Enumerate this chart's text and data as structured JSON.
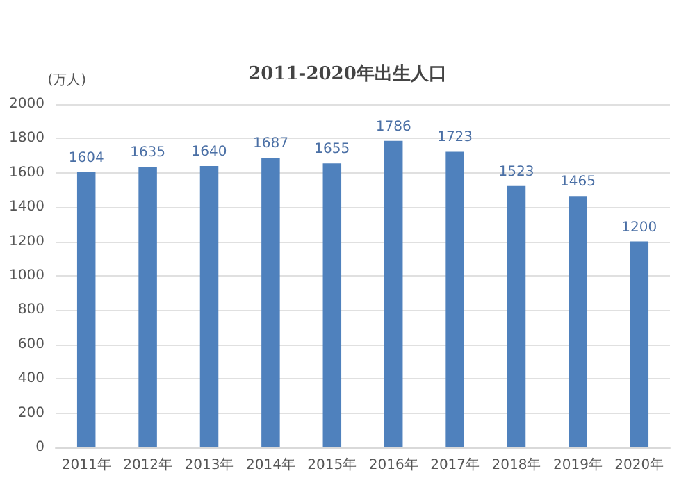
{
  "chart_data": {
    "type": "bar",
    "title": "2011-2020年出生人口",
    "ylabel": "(万人)",
    "categories": [
      "2011年",
      "2012年",
      "2013年",
      "2014年",
      "2015年",
      "2016年",
      "2017年",
      "2018年",
      "2019年",
      "2020年"
    ],
    "values": [
      1604,
      1635,
      1640,
      1687,
      1655,
      1786,
      1723,
      1523,
      1465,
      1200
    ],
    "color": "#4f81bd",
    "ylim": [
      0,
      2000
    ],
    "yticks": [
      0,
      200,
      400,
      600,
      800,
      1000,
      1200,
      1400,
      1600,
      1800,
      2000
    ],
    "grid": "y",
    "data_labels": true
  }
}
